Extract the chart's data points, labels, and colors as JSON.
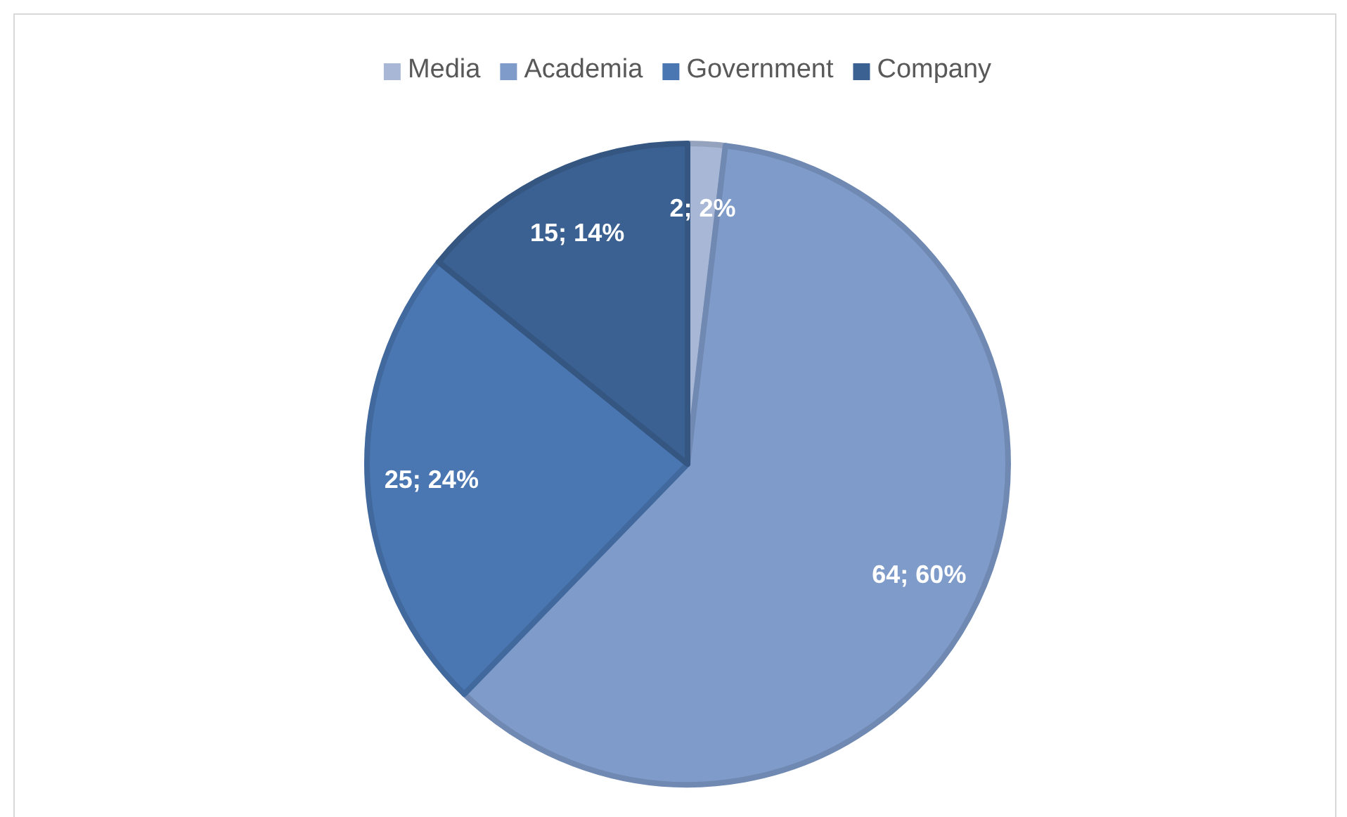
{
  "chart_data": {
    "type": "pie",
    "categories": [
      "Media",
      "Academia",
      "Government",
      "Company"
    ],
    "values": [
      2,
      64,
      25,
      15
    ],
    "colors": [
      "#a9b7d6",
      "#7f9bca",
      "#4a77b2",
      "#3b6192"
    ],
    "value_labels": [
      "2; 2%",
      "64; 60%",
      "25; 24%",
      "15; 14%"
    ],
    "legend": "top"
  }
}
